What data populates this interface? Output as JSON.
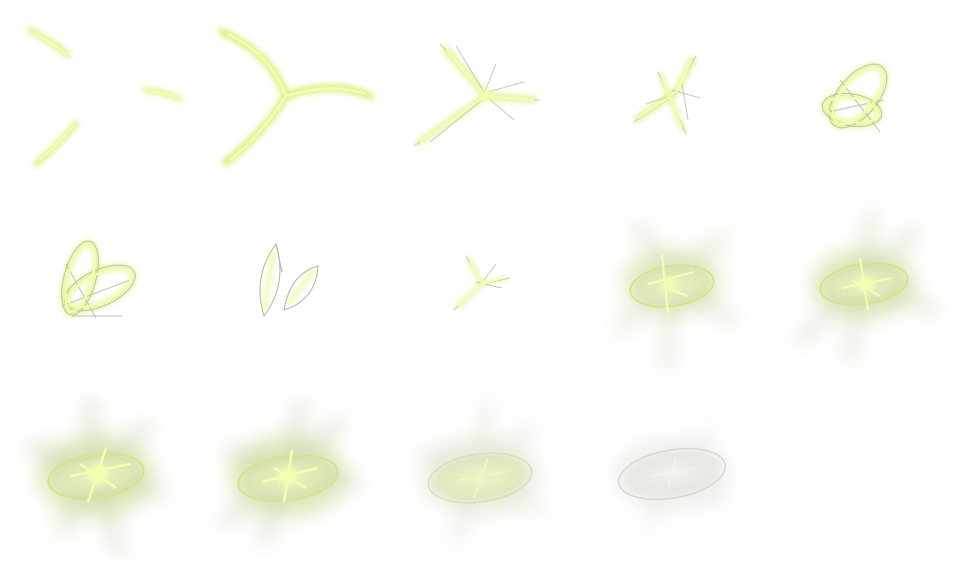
{
  "sprite_sheet": {
    "effect": "slash-burst-animation",
    "columns": 5,
    "rows": 3,
    "frame_count": 15,
    "non_empty_frames": 14,
    "colors": {
      "background": "#ffffff",
      "stroke_core": "#f4ffb0",
      "stroke_glow": "#d9ec6a",
      "stroke_dark": "#b8bfa0",
      "burst_ring": "#e3eeb0",
      "burst_fade": "#e6e9e2"
    }
  }
}
